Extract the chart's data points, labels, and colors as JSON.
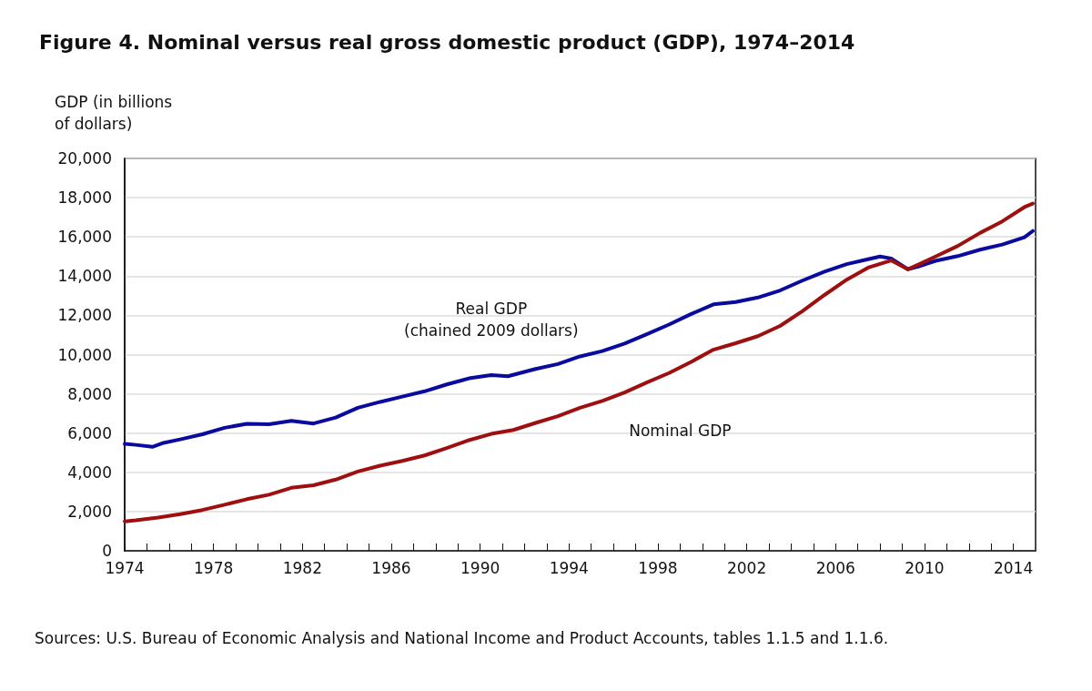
{
  "chart_data": {
    "type": "line",
    "title": "Figure 4. Nominal versus real gross domestic product (GDP), 1974–2014",
    "ylabel": "GDP (in billions\nof dollars)",
    "annotations": [
      "Sources: U.S. Bureau of Economic Analysis and National Income and Product Accounts, tables 1.1.5 and 1.1.6."
    ],
    "xlim": [
      1974,
      2015
    ],
    "xticks": [
      1974,
      {
        "value": 1975,
        "label": null
      },
      {
        "value": 1976,
        "label": null
      },
      {
        "value": 1977,
        "label": null
      },
      1978,
      {
        "value": 1979,
        "label": null
      },
      {
        "value": 1980,
        "label": null
      },
      {
        "value": 1981,
        "label": null
      },
      1982,
      {
        "value": 1983,
        "label": null
      },
      {
        "value": 1984,
        "label": null
      },
      {
        "value": 1985,
        "label": null
      },
      1986,
      {
        "value": 1987,
        "label": null
      },
      {
        "value": 1988,
        "label": null
      },
      {
        "value": 1989,
        "label": null
      },
      1990,
      {
        "value": 1991,
        "label": null
      },
      {
        "value": 1992,
        "label": null
      },
      {
        "value": 1993,
        "label": null
      },
      1994,
      {
        "value": 1995,
        "label": null
      },
      {
        "value": 1996,
        "label": null
      },
      {
        "value": 1997,
        "label": null
      },
      1998,
      {
        "value": 1999,
        "label": null
      },
      {
        "value": 2000,
        "label": null
      },
      {
        "value": 2001,
        "label": null
      },
      2002,
      {
        "value": 2003,
        "label": null
      },
      {
        "value": 2004,
        "label": null
      },
      {
        "value": 2005,
        "label": null
      },
      2006,
      {
        "value": 2007,
        "label": null
      },
      {
        "value": 2008,
        "label": null
      },
      {
        "value": 2009,
        "label": null
      },
      2010,
      {
        "value": 2011,
        "label": null
      },
      {
        "value": 2012,
        "label": null
      },
      {
        "value": 2013,
        "label": null
      },
      2014
    ],
    "ylim": [
      0,
      20000
    ],
    "yticks": [
      0,
      {
        "value": 2000,
        "label": "2,000"
      },
      {
        "value": 4000,
        "label": "4,000"
      },
      {
        "value": 6000,
        "label": "6,000"
      },
      {
        "value": 8000,
        "label": "8,000"
      },
      {
        "value": 10000,
        "label": "10,000"
      },
      {
        "value": 12000,
        "label": "12,000"
      },
      {
        "value": 14000,
        "label": "14,000"
      },
      {
        "value": 16000,
        "label": "16,000"
      },
      {
        "value": 18000,
        "label": "18,000"
      },
      {
        "value": 20000,
        "label": "20,000"
      }
    ],
    "grid": "y",
    "legend": false,
    "marker": "none",
    "line_style": "solid",
    "series": [
      {
        "name": "Real GDP\n(chained 2009 dollars)",
        "color": "#0a0a9e",
        "x": [
          1974,
          1974.5,
          1975.25,
          1975.75,
          1976.5,
          1977.5,
          1978.5,
          1979.5,
          1980.5,
          1981.5,
          1982.5,
          1983.5,
          1984.5,
          1985.5,
          1986.5,
          1987.5,
          1988.5,
          1989.5,
          1990.5,
          1991.25,
          1992.5,
          1993.5,
          1994.5,
          1995.5,
          1996.5,
          1997.5,
          1998.5,
          1999.5,
          2000.5,
          2001.5,
          2002.5,
          2003.5,
          2004.5,
          2005.5,
          2006.5,
          2007.5,
          2008,
          2008.5,
          2009.25,
          2009.75,
          2010.5,
          2011.5,
          2012.5,
          2013.5,
          2014.5,
          2014.875
        ],
        "values": [
          5450,
          5400,
          5300,
          5500,
          5680,
          5940,
          6270,
          6470,
          6450,
          6620,
          6490,
          6790,
          7290,
          7590,
          7860,
          8130,
          8480,
          8790,
          8960,
          8900,
          9270,
          9520,
          9910,
          10180,
          10560,
          11040,
          11530,
          12070,
          12560,
          12680,
          12910,
          13270,
          13770,
          14230,
          14610,
          14870,
          15000,
          14900,
          14350,
          14500,
          14780,
          15020,
          15350,
          15610,
          15980,
          16300
        ]
      },
      {
        "name": "Nominal GDP",
        "color": "#9e1010",
        "x": [
          1974,
          1974.5,
          1975.5,
          1976.5,
          1977.5,
          1978.5,
          1979.5,
          1980.5,
          1981.5,
          1982.5,
          1983.5,
          1984.5,
          1985.5,
          1986.5,
          1987.5,
          1988.5,
          1989.5,
          1990.5,
          1991.5,
          1992.5,
          1993.5,
          1994.5,
          1995.5,
          1996.5,
          1997.5,
          1998.5,
          1999.5,
          2000.5,
          2001.5,
          2002.5,
          2003.5,
          2004.5,
          2005.5,
          2006.5,
          2007.5,
          2008.5,
          2009.25,
          2009.75,
          2010.5,
          2011.5,
          2012.5,
          2013.5,
          2014.5,
          2014.875
        ],
        "values": [
          1500,
          1550,
          1690,
          1870,
          2080,
          2350,
          2630,
          2860,
          3210,
          3340,
          3630,
          4040,
          4340,
          4580,
          4860,
          5240,
          5640,
          5960,
          6160,
          6520,
          6860,
          7290,
          7640,
          8070,
          8580,
          9060,
          9630,
          10250,
          10580,
          10940,
          11460,
          12210,
          13040,
          13820,
          14450,
          14800,
          14350,
          14600,
          15000,
          15540,
          16200,
          16790,
          17520,
          17700
        ]
      }
    ]
  }
}
